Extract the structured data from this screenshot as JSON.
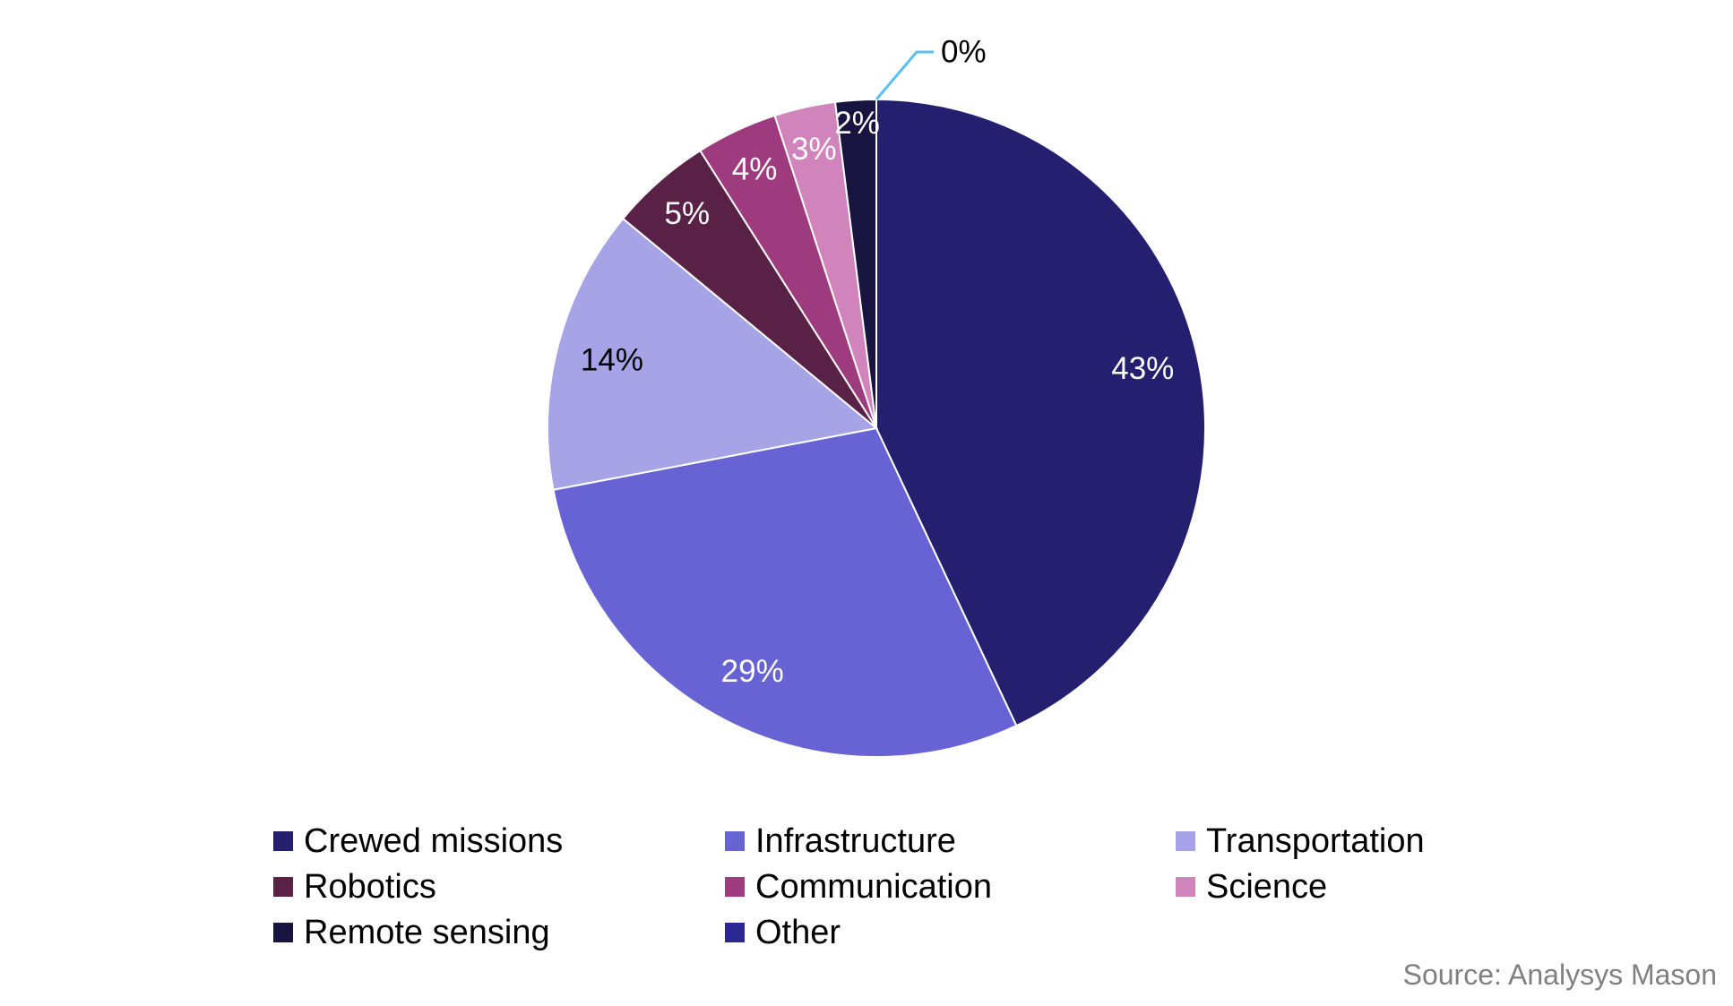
{
  "chart_data": {
    "type": "pie",
    "start": "top",
    "direction": "clockwise",
    "slices": [
      {
        "name": "Crewed missions",
        "value": 43,
        "label": "43%",
        "color": "#241f6f",
        "label_color": "#ffffff"
      },
      {
        "name": "Infrastructure",
        "value": 29,
        "label": "29%",
        "color": "#6763d4",
        "label_color": "#ffffff"
      },
      {
        "name": "Transportation",
        "value": 14,
        "label": "14%",
        "color": "#a6a3e6",
        "label_color": "#000000"
      },
      {
        "name": "Robotics",
        "value": 5,
        "label": "5%",
        "color": "#5a2147",
        "label_color": "#ffffff"
      },
      {
        "name": "Communication",
        "value": 4,
        "label": "4%",
        "color": "#9e3b7e",
        "label_color": "#ffffff"
      },
      {
        "name": "Science",
        "value": 3,
        "label": "3%",
        "color": "#d184bb",
        "label_color": "#ffffff"
      },
      {
        "name": "Remote sensing",
        "value": 2,
        "label": "2%",
        "color": "#181440",
        "label_color": "#ffffff"
      },
      {
        "name": "Other",
        "value": 0,
        "label": "0%",
        "color": "#2c2893",
        "label_color": "#000000"
      }
    ],
    "leader_line_color": "#5bc0f8",
    "legend_placement": "bottom",
    "source": "Source: Analysys Mason"
  }
}
